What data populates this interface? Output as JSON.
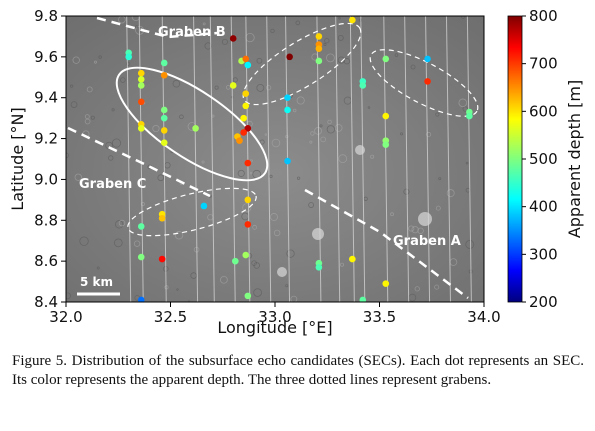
{
  "caption": "Figure 5. Distribution of the subsurface echo candidates (SECs). Each dot represents an SEC. Its color represents the apparent depth. The three dotted lines represent grabens.",
  "map_labels": {
    "graben_a": "Graben A",
    "graben_b": "Graben B",
    "graben_c": "Graben C",
    "scale_bar": "5 km"
  },
  "chart_data": {
    "type": "scatter",
    "xlabel": "Longitude [°E]",
    "ylabel": "Latitude [°N]",
    "colorbar_label": "Apparent depth [m]",
    "xlim": [
      32.0,
      34.0
    ],
    "ylim": [
      8.4,
      9.8
    ],
    "xticks": [
      32.0,
      32.5,
      33.0,
      33.5,
      34.0
    ],
    "xtick_labels": [
      "32.0",
      "32.5",
      "33.0",
      "33.5",
      "34.0"
    ],
    "yticks": [
      8.4,
      8.6,
      8.8,
      9.0,
      9.2,
      9.4,
      9.6,
      9.8
    ],
    "ytick_labels": [
      "8.4",
      "8.6",
      "8.8",
      "9.0",
      "9.2",
      "9.4",
      "9.6",
      "9.8"
    ],
    "colorbar_range": [
      200,
      800
    ],
    "colorbar_ticks": [
      200,
      300,
      400,
      500,
      600,
      700,
      800
    ],
    "colorbar_tick_labels": [
      "200",
      "300",
      "400",
      "500",
      "600",
      "700",
      "800"
    ],
    "colormap": "jet",
    "points": [
      {
        "x": 32.3,
        "y": 9.62,
        "depth": 470
      },
      {
        "x": 32.3,
        "y": 9.6,
        "depth": 450
      },
      {
        "x": 32.36,
        "y": 9.52,
        "depth": 600
      },
      {
        "x": 32.36,
        "y": 9.49,
        "depth": 550
      },
      {
        "x": 32.36,
        "y": 9.46,
        "depth": 520
      },
      {
        "x": 32.36,
        "y": 9.38,
        "depth": 680
      },
      {
        "x": 32.36,
        "y": 9.27,
        "depth": 600
      },
      {
        "x": 32.36,
        "y": 9.25,
        "depth": 560
      },
      {
        "x": 32.47,
        "y": 9.57,
        "depth": 480
      },
      {
        "x": 32.47,
        "y": 9.51,
        "depth": 640
      },
      {
        "x": 32.47,
        "y": 9.34,
        "depth": 500
      },
      {
        "x": 32.47,
        "y": 9.3,
        "depth": 480
      },
      {
        "x": 32.47,
        "y": 9.24,
        "depth": 600
      },
      {
        "x": 32.47,
        "y": 9.18,
        "depth": 560
      },
      {
        "x": 32.62,
        "y": 9.25,
        "depth": 520
      },
      {
        "x": 32.36,
        "y": 8.77,
        "depth": 480
      },
      {
        "x": 32.36,
        "y": 8.62,
        "depth": 500
      },
      {
        "x": 32.36,
        "y": 8.41,
        "depth": 340
      },
      {
        "x": 32.46,
        "y": 8.83,
        "depth": 590
      },
      {
        "x": 32.46,
        "y": 8.81,
        "depth": 610
      },
      {
        "x": 32.46,
        "y": 8.61,
        "depth": 720
      },
      {
        "x": 32.66,
        "y": 8.87,
        "depth": 400
      },
      {
        "x": 32.8,
        "y": 9.69,
        "depth": 790
      },
      {
        "x": 32.84,
        "y": 9.58,
        "depth": 530
      },
      {
        "x": 32.86,
        "y": 9.59,
        "depth": 660
      },
      {
        "x": 32.87,
        "y": 9.56,
        "depth": 420
      },
      {
        "x": 32.8,
        "y": 9.46,
        "depth": 560
      },
      {
        "x": 32.86,
        "y": 9.42,
        "depth": 600
      },
      {
        "x": 32.86,
        "y": 9.36,
        "depth": 580
      },
      {
        "x": 32.85,
        "y": 9.3,
        "depth": 580
      },
      {
        "x": 32.87,
        "y": 9.25,
        "depth": 770
      },
      {
        "x": 32.85,
        "y": 9.23,
        "depth": 700
      },
      {
        "x": 32.82,
        "y": 9.21,
        "depth": 610
      },
      {
        "x": 32.83,
        "y": 9.19,
        "depth": 640
      },
      {
        "x": 32.87,
        "y": 9.08,
        "depth": 700
      },
      {
        "x": 32.87,
        "y": 8.9,
        "depth": 600
      },
      {
        "x": 32.87,
        "y": 8.78,
        "depth": 700
      },
      {
        "x": 32.86,
        "y": 8.63,
        "depth": 520
      },
      {
        "x": 32.81,
        "y": 8.6,
        "depth": 490
      },
      {
        "x": 32.87,
        "y": 8.43,
        "depth": 500
      },
      {
        "x": 33.07,
        "y": 9.6,
        "depth": 800
      },
      {
        "x": 33.06,
        "y": 9.4,
        "depth": 400
      },
      {
        "x": 33.06,
        "y": 9.34,
        "depth": 430
      },
      {
        "x": 33.06,
        "y": 9.09,
        "depth": 390
      },
      {
        "x": 33.21,
        "y": 9.7,
        "depth": 600
      },
      {
        "x": 33.21,
        "y": 9.66,
        "depth": 640
      },
      {
        "x": 33.21,
        "y": 9.64,
        "depth": 620
      },
      {
        "x": 33.21,
        "y": 9.58,
        "depth": 500
      },
      {
        "x": 33.21,
        "y": 8.59,
        "depth": 490
      },
      {
        "x": 33.21,
        "y": 8.57,
        "depth": 470
      },
      {
        "x": 33.37,
        "y": 9.78,
        "depth": 590
      },
      {
        "x": 33.37,
        "y": 8.61,
        "depth": 580
      },
      {
        "x": 33.42,
        "y": 9.48,
        "depth": 460
      },
      {
        "x": 33.42,
        "y": 9.46,
        "depth": 470
      },
      {
        "x": 33.42,
        "y": 8.41,
        "depth": 480
      },
      {
        "x": 33.53,
        "y": 9.59,
        "depth": 500
      },
      {
        "x": 33.53,
        "y": 9.31,
        "depth": 580
      },
      {
        "x": 33.53,
        "y": 9.19,
        "depth": 510
      },
      {
        "x": 33.53,
        "y": 9.17,
        "depth": 500
      },
      {
        "x": 33.53,
        "y": 8.49,
        "depth": 580
      },
      {
        "x": 33.73,
        "y": 9.59,
        "depth": 390
      },
      {
        "x": 33.73,
        "y": 9.48,
        "depth": 700
      },
      {
        "x": 33.93,
        "y": 9.33,
        "depth": 490
      },
      {
        "x": 33.93,
        "y": 9.31,
        "depth": 480
      }
    ]
  }
}
